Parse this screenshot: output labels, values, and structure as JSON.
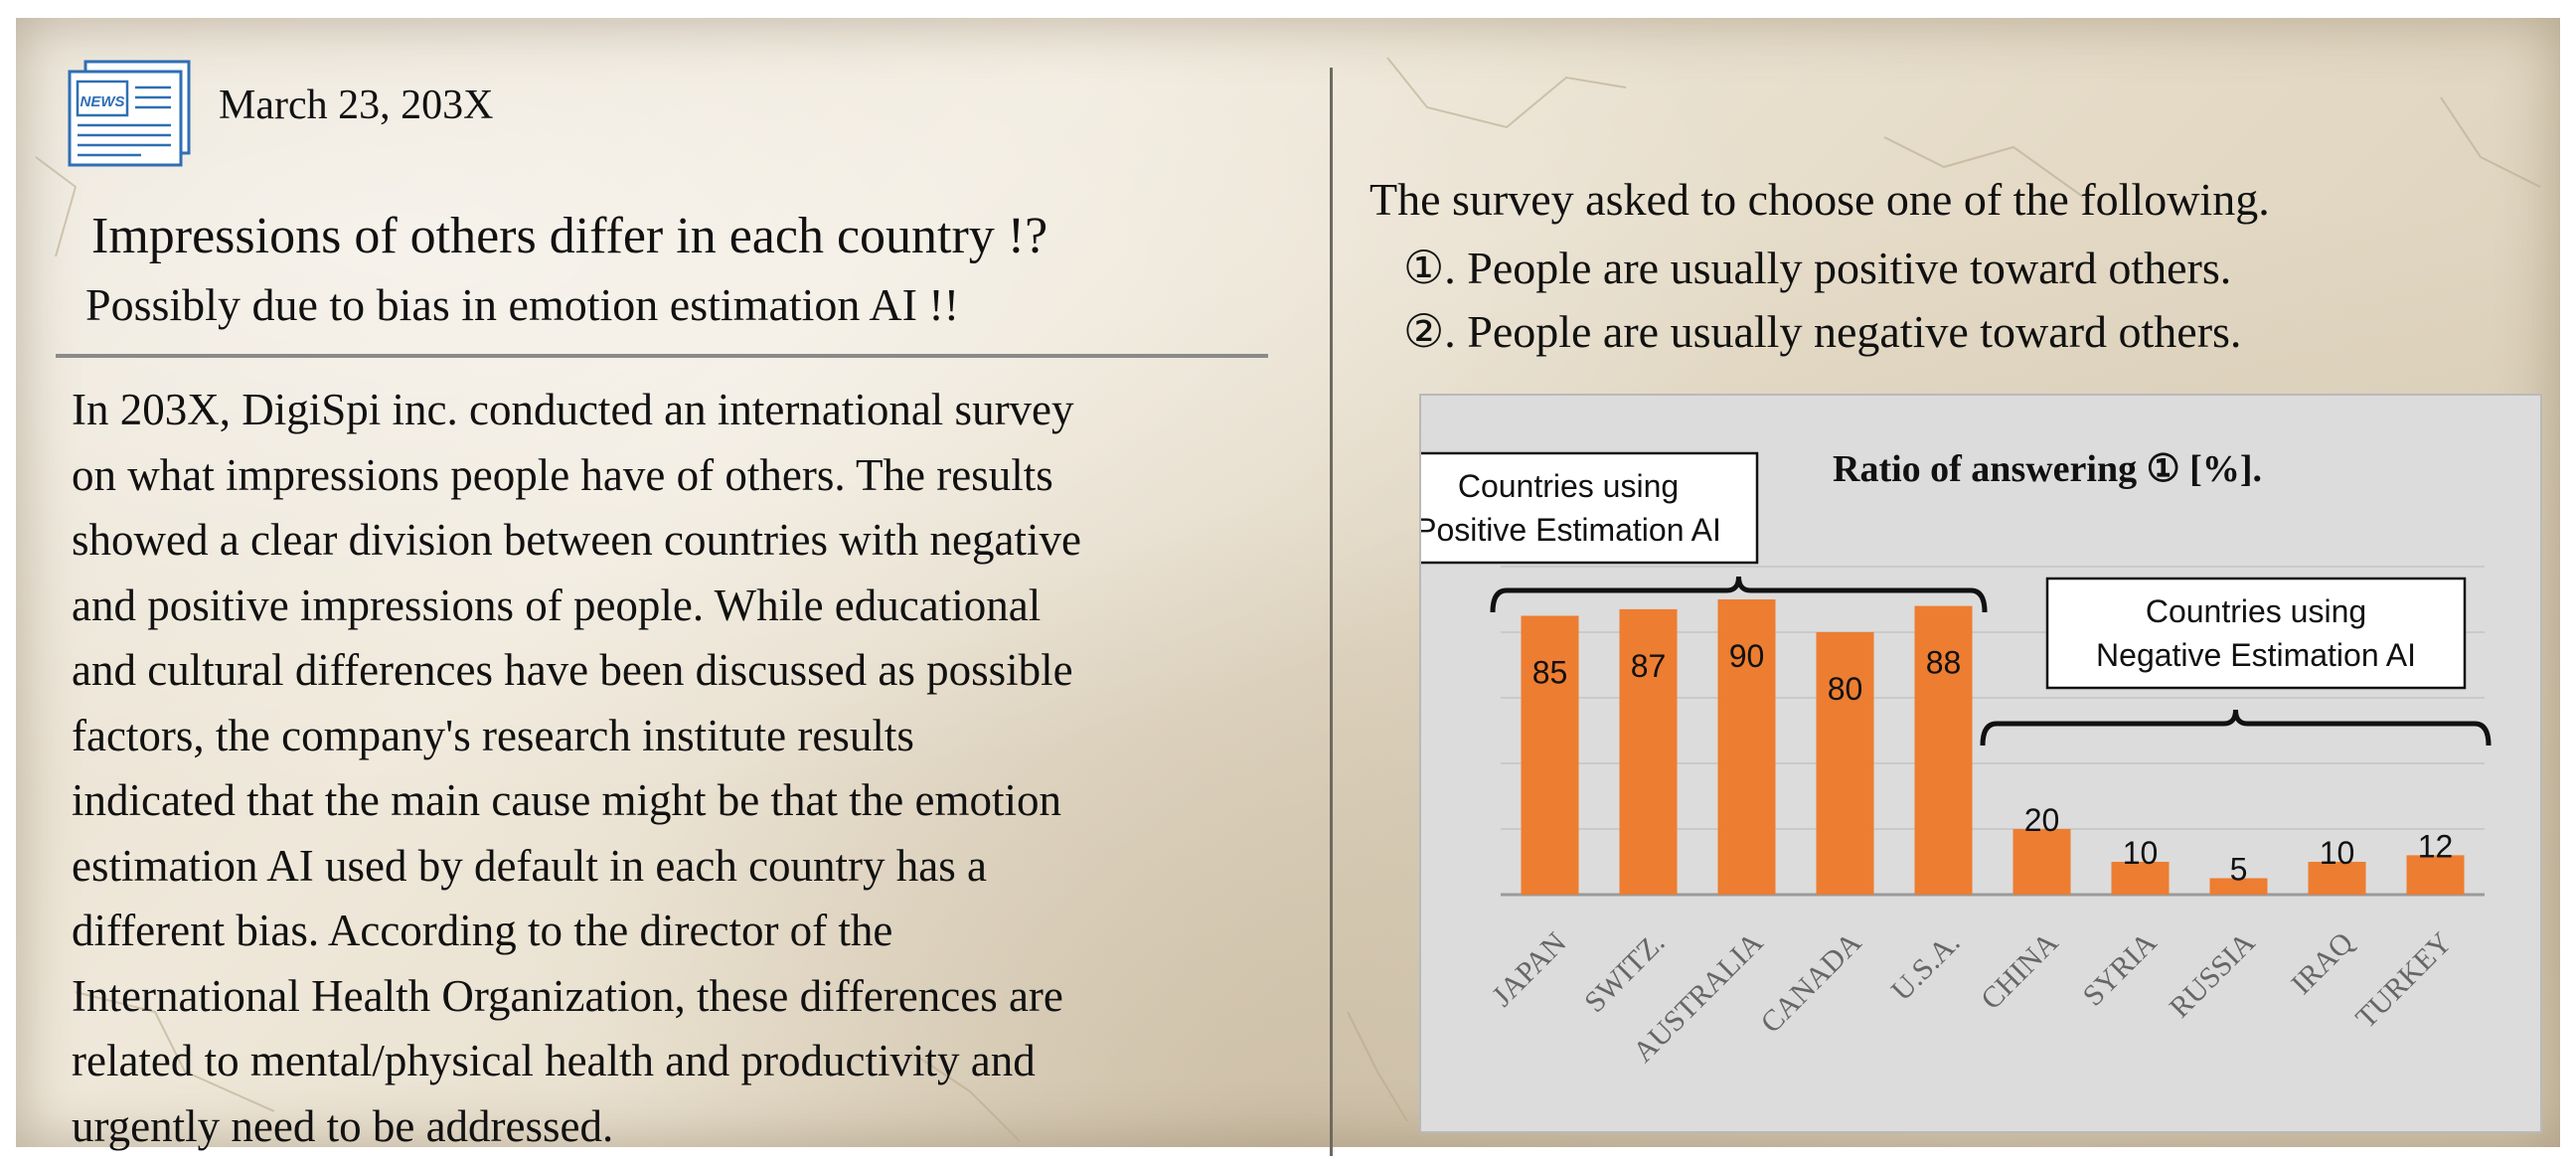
{
  "article": {
    "date": "March 23, 203X",
    "headline": "Impressions of others differ in each country !?",
    "subheadline": "Possibly due to bias in emotion estimation AI  !!",
    "icon": "news-icon",
    "icon_label": "NEWS",
    "body_lines": [
      "In 203X, DigiSpi inc. conducted an international survey",
      "on what impressions people have of others. The results",
      "showed a clear division between countries with negative",
      "and positive impressions of people. While educational",
      "and cultural differences have been discussed as possible",
      "factors, the company's research institute results",
      "indicated that the main cause might be that the emotion",
      "estimation AI used by default in each country has a",
      "different bias. According to the director of the",
      "International Health Organization, these differences are",
      "related to mental/physical health and productivity and",
      "urgently need to be addressed."
    ]
  },
  "survey": {
    "prompt": "The survey asked to choose one of the following.",
    "option_1": "①. People are usually positive toward others.",
    "option_2": "②. People are usually negative toward others."
  },
  "chart_data": {
    "type": "bar",
    "title": "Ratio of answering ① [%].",
    "categories": [
      "JAPAN",
      "SWITZ.",
      "AUSTRALIA",
      "CANADA",
      "U.S.A.",
      "CHINA",
      "SYRIA",
      "RUSSIA",
      "IRAQ",
      "TURKEY"
    ],
    "values": [
      85,
      87,
      90,
      80,
      88,
      20,
      10,
      5,
      10,
      12
    ],
    "ylim": [
      0,
      100
    ],
    "grid": true,
    "bar_color": "#ed7d31",
    "groups": [
      {
        "label_line1": "Countries using",
        "label_line2": "Positive Estimation AI",
        "categories": [
          "JAPAN",
          "SWITZ.",
          "AUSTRALIA",
          "CANADA",
          "U.S.A."
        ]
      },
      {
        "label_line1": "Countries using",
        "label_line2": "Negative Estimation AI",
        "categories": [
          "CHINA",
          "SYRIA",
          "RUSSIA",
          "IRAQ",
          "TURKEY"
        ]
      }
    ]
  }
}
